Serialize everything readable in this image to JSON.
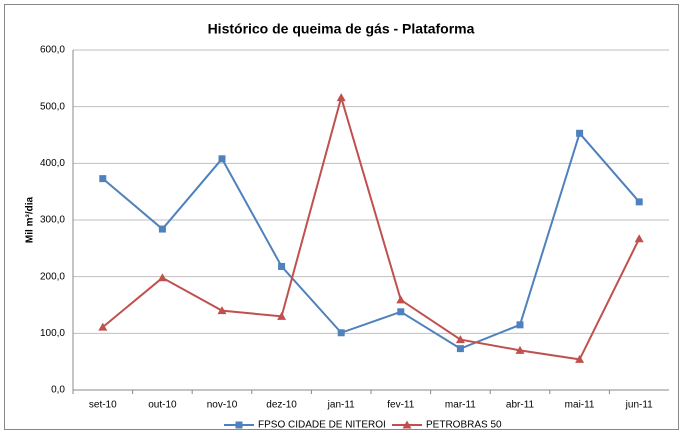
{
  "chart_data": {
    "type": "line",
    "title": "Histórico de queima de gás - Plataforma",
    "y_label": "Mil m³/dia",
    "categories": [
      "set-10",
      "out-10",
      "nov-10",
      "dez-10",
      "jan-11",
      "fev-11",
      "mar-11",
      "abr-11",
      "mai-11",
      "jun-11"
    ],
    "series": [
      {
        "name": "FPSO CIDADE DE NITEROI",
        "color": "#4f81bd",
        "marker": "square",
        "values": [
          373,
          284,
          408,
          218,
          101,
          138,
          73,
          115,
          453,
          332
        ]
      },
      {
        "name": "PETROBRAS 50",
        "color": "#c0504d",
        "marker": "triangle",
        "values": [
          111,
          198,
          140,
          130,
          516,
          159,
          89,
          70,
          54,
          267
        ]
      }
    ],
    "ylim": [
      0,
      600
    ],
    "yticks": [
      {
        "value": 0,
        "label": "0,0"
      },
      {
        "value": 100,
        "label": "100,0"
      },
      {
        "value": 200,
        "label": "200,0"
      },
      {
        "value": 300,
        "label": "300,0"
      },
      {
        "value": 400,
        "label": "400,0"
      },
      {
        "value": 500,
        "label": "500,0"
      },
      {
        "value": 600,
        "label": "600,0"
      }
    ],
    "grid": true,
    "legend": "bottom"
  }
}
